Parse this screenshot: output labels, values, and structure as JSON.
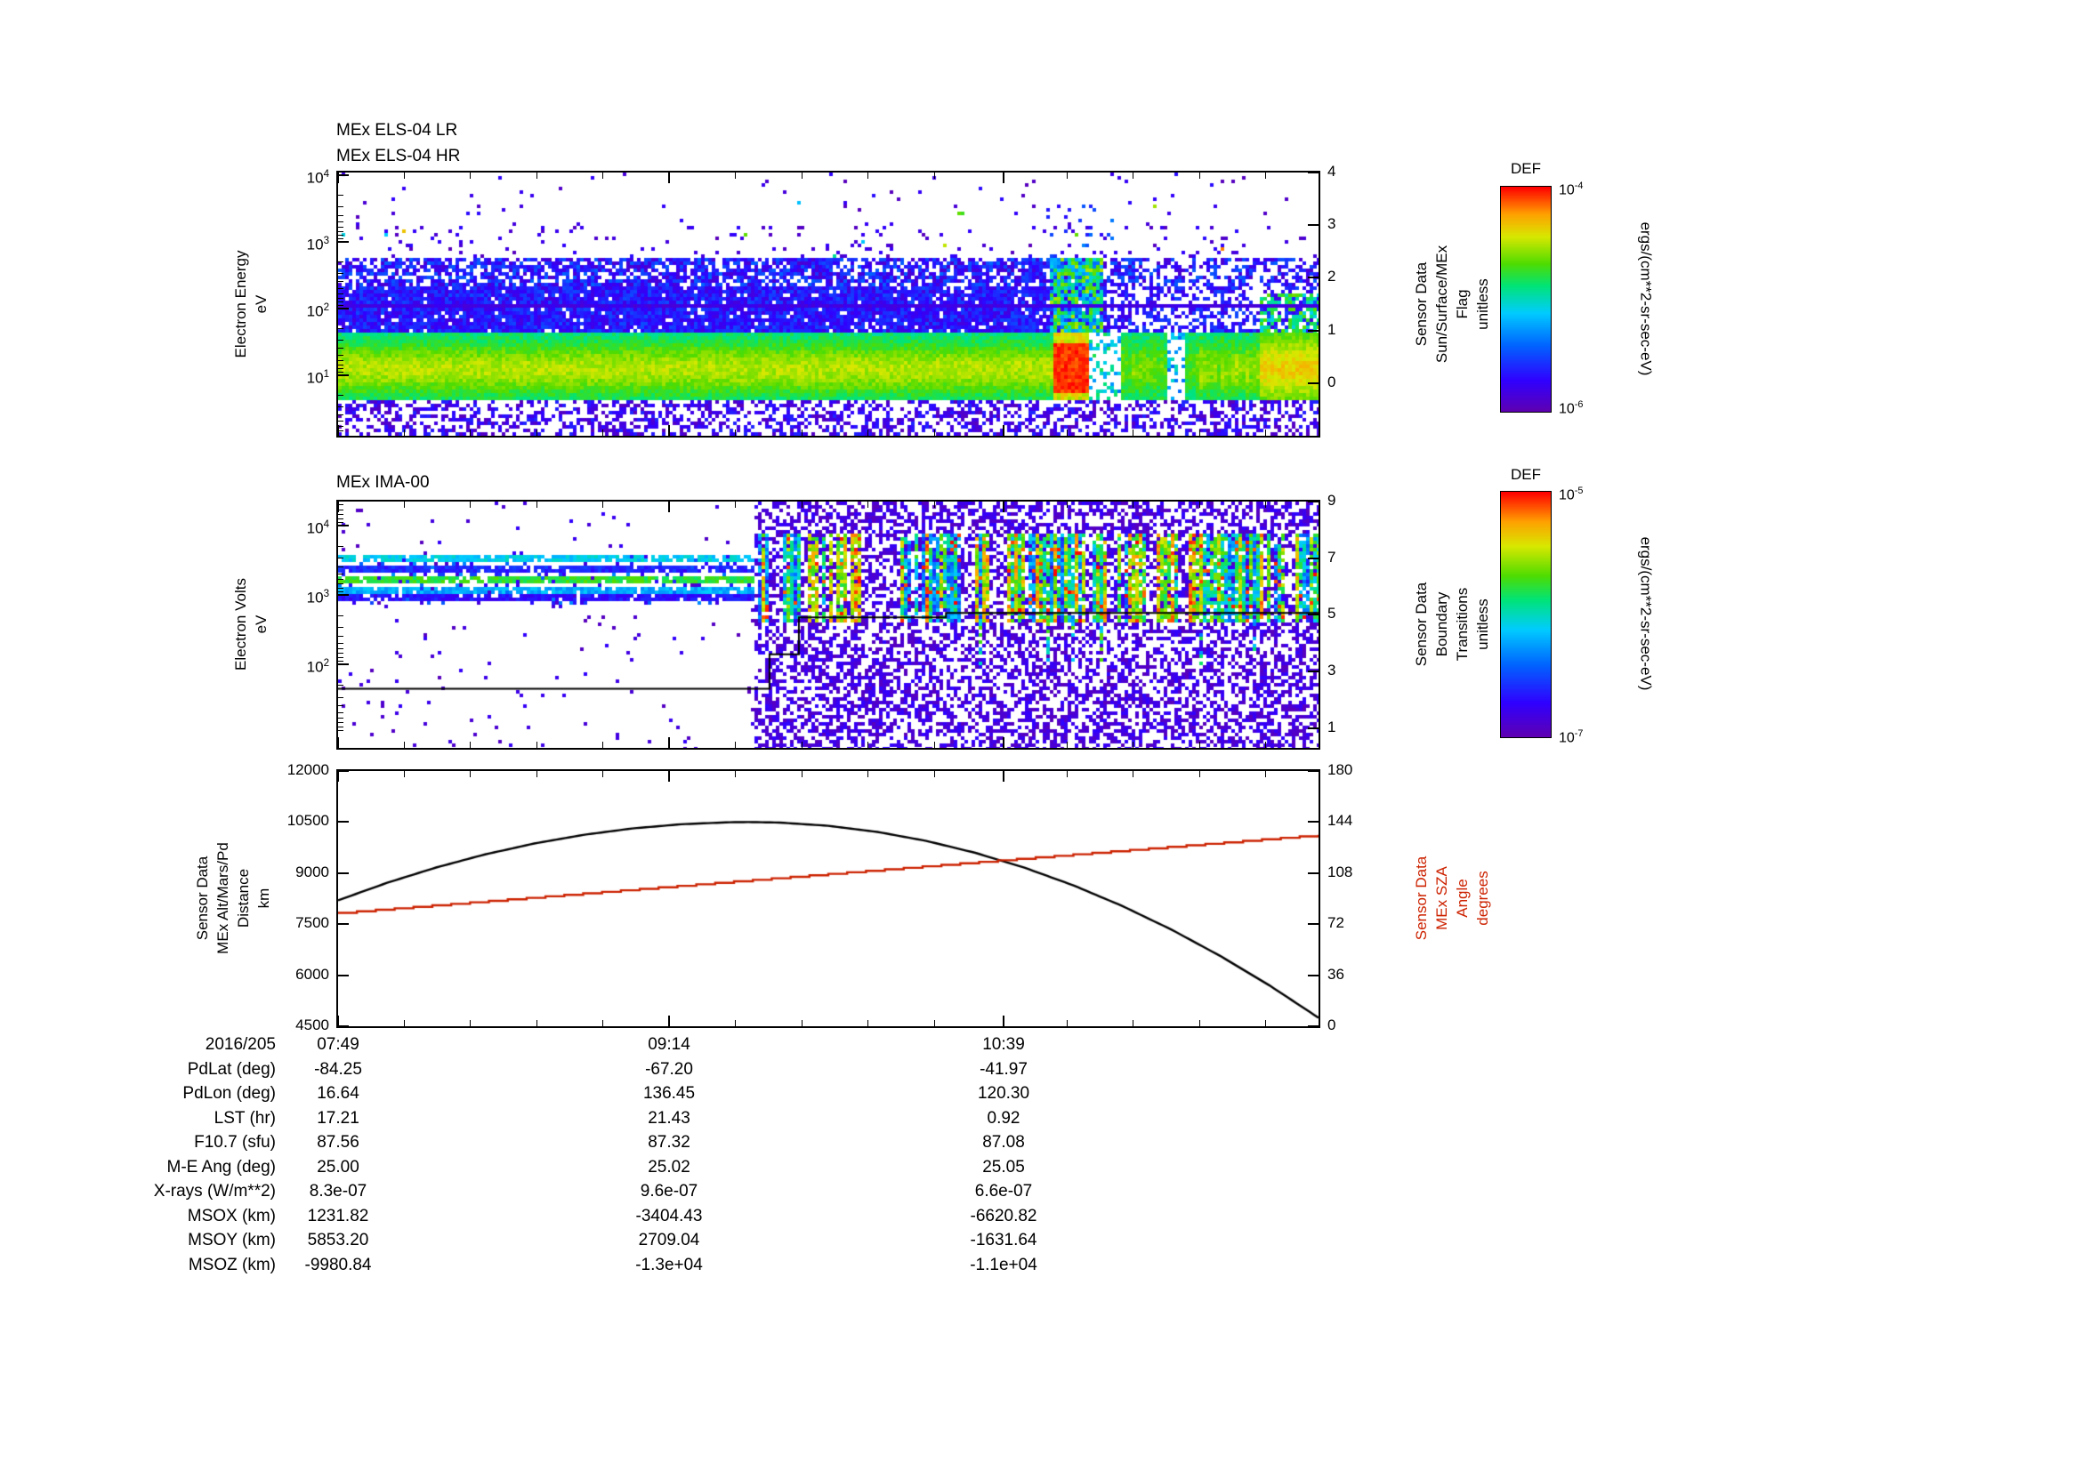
{
  "log_base": "10",
  "colors": {
    "axis": "#000000",
    "alt_line": "#000000",
    "sza_line": "#cc2200",
    "background": "#ffffff"
  },
  "panels": {
    "els": {
      "title_line1": "MEx ELS-04 LR",
      "title_line2": "MEx ELS-04 HR",
      "ylabel_line1": "Electron Energy",
      "ylabel_line2": "eV",
      "yticks": [
        {
          "exp": "4",
          "f": 0.01
        },
        {
          "exp": "3",
          "f": 0.263
        },
        {
          "exp": "2",
          "f": 0.516
        },
        {
          "exp": "1",
          "f": 0.769
        }
      ],
      "log_minor": {
        "f0": 0.01,
        "e0": 4,
        "df": 0.253
      },
      "right_label_lines": [
        "Sensor Data",
        "Sun/Surface/MEx",
        "Flag",
        "unitless"
      ],
      "right_ticks": [
        {
          "label": "4",
          "f": 0.0
        },
        {
          "label": "3",
          "f": 0.2
        },
        {
          "label": "2",
          "f": 0.4
        },
        {
          "label": "1",
          "f": 0.6
        },
        {
          "label": "0",
          "f": 0.8
        }
      ]
    },
    "ima": {
      "title_line1": "MEx IMA-00",
      "ylabel_line1": "Electron Volts",
      "ylabel_line2": "eV",
      "yticks": [
        {
          "exp": "4",
          "f": 0.096
        },
        {
          "exp": "3",
          "f": 0.378
        },
        {
          "exp": "2",
          "f": 0.66
        }
      ],
      "log_minor": {
        "f0": 0.096,
        "e0": 4,
        "df": 0.282
      },
      "right_label_lines": [
        "Sensor Data",
        "Boundary",
        "Transitions",
        "unitless"
      ],
      "right_ticks": [
        {
          "label": "9",
          "f": 0.0
        },
        {
          "label": "7",
          "f": 0.23
        },
        {
          "label": "5",
          "f": 0.46
        },
        {
          "label": "3",
          "f": 0.69
        },
        {
          "label": "1",
          "f": 0.92
        }
      ]
    },
    "orbit": {
      "ylabel_lines": [
        "Sensor Data",
        "MEx Alt/Mars/Pd",
        "Distance",
        "km"
      ],
      "yticks": [
        {
          "label": "12000",
          "f": 0.0
        },
        {
          "label": "10500",
          "f": 0.2
        },
        {
          "label": "9000",
          "f": 0.4
        },
        {
          "label": "7500",
          "f": 0.6
        },
        {
          "label": "6000",
          "f": 0.8
        },
        {
          "label": "4500",
          "f": 1.0
        }
      ],
      "right_label_lines": [
        "Sensor Data",
        "MEx SZA",
        "Angle",
        "degrees"
      ],
      "right_ticks": [
        {
          "label": "180",
          "f": 0.0
        },
        {
          "label": "144",
          "f": 0.2
        },
        {
          "label": "108",
          "f": 0.4
        },
        {
          "label": "72",
          "f": 0.6
        },
        {
          "label": "36",
          "f": 0.8
        },
        {
          "label": "0",
          "f": 1.0
        }
      ]
    }
  },
  "colorbars": {
    "els": {
      "title": "DEF",
      "top_exp": "-4",
      "bottom_exp": "-6",
      "units": "ergs/(cm**2-sr-sec-eV)"
    },
    "ima": {
      "title": "DEF",
      "top_exp": "-5",
      "bottom_exp": "-7",
      "units": "ergs/(cm**2-sr-sec-eV)"
    }
  },
  "xaxis": {
    "major_ticks": [
      {
        "label": "07:49",
        "f": 0.0
      },
      {
        "label": "09:14",
        "f": 0.338
      },
      {
        "label": "10:39",
        "f": 0.679
      }
    ],
    "minor_step": 0.0676
  },
  "table": {
    "row_labels": [
      "2016/205",
      "PdLat (deg)",
      "PdLon (deg)",
      "LST (hr)",
      "F10.7 (sfu)",
      "M-E Ang (deg)",
      "X-rays (W/m**2)",
      "MSOX (km)",
      "MSOY (km)",
      "MSOZ (km)"
    ],
    "rows": [
      [
        "07:49",
        "09:14",
        "10:39"
      ],
      [
        "-84.25",
        "-67.20",
        "-41.97"
      ],
      [
        "16.64",
        "136.45",
        "120.30"
      ],
      [
        "17.21",
        "21.43",
        "0.92"
      ],
      [
        "87.56",
        "87.32",
        "87.08"
      ],
      [
        "25.00",
        "25.02",
        "25.05"
      ],
      [
        "8.3e-07",
        "9.6e-07",
        "6.6e-07"
      ],
      [
        "1231.82",
        "-3404.43",
        "-6620.82"
      ],
      [
        "5853.20",
        "2709.04",
        "-1631.64"
      ],
      [
        "-9980.84",
        "-1.3e+04",
        "-1.1e+04"
      ]
    ]
  },
  "chart_data": [
    {
      "id": "els_spectrogram",
      "type": "heatmap",
      "title": "MEx ELS-04 LR / MEx ELS-04 HR",
      "x_date": "2016/205",
      "x_tick_labels": [
        "07:49",
        "09:14",
        "10:39"
      ],
      "y_axis": {
        "label": "Electron Energy eV",
        "scale": "log",
        "ticks": [
          10,
          100,
          1000,
          10000
        ]
      },
      "z_axis": {
        "label": "DEF ergs/(cm**2-sr-sec-eV)",
        "scale": "log",
        "min": 1e-06,
        "max": 0.0001
      },
      "right_axis": {
        "label": "Sensor Data Sun/Surface/MEx Flag unitless",
        "ticks": [
          0,
          1,
          2,
          3,
          4
        ]
      },
      "features": [
        "continuous intense green flux band ~5-40 eV across whole interval",
        "dense blue-purple band ~50-500 eV",
        "sparse purple speckle above ~1 keV and below ~4 eV",
        "red high-flux enhancement ~3/4 through interval at ~10 eV with vertical disturbance up to ~1 keV",
        "patchy yellow-green low-energy flux after the enhancement"
      ]
    },
    {
      "id": "ima_spectrogram",
      "type": "heatmap",
      "title": "MEx IMA-00",
      "x_date": "2016/205",
      "x_tick_labels": [
        "07:49",
        "09:14",
        "10:39"
      ],
      "y_axis": {
        "label": "Electron Volts eV",
        "scale": "log",
        "ticks": [
          100,
          1000,
          10000
        ]
      },
      "z_axis": {
        "label": "DEF ergs/(cm**2-sr-sec-eV)",
        "scale": "log",
        "min": 1e-07,
        "max": 1e-05
      },
      "right_axis": {
        "label": "Sensor Data Boundary Transitions unitless",
        "ticks": [
          1,
          3,
          5,
          7,
          9
        ]
      },
      "features": [
        "horizontal banded blue/cyan/green flux ~1-4 keV during first part",
        "mostly empty lower-left region with sparse purple dots",
        "dense purple speckle with colorful vertical striping in later part",
        "black boundary-transition step line referenced to right axis"
      ]
    },
    {
      "id": "orbit_lines",
      "type": "line",
      "series": [
        {
          "name": "MEx Alt/Mars/Pd Distance",
          "units": "km",
          "color": "#000000",
          "style": "solid",
          "axis": "left",
          "axis_range": [
            4500,
            12000
          ],
          "x": [
            0,
            0.05,
            0.1,
            0.15,
            0.2,
            0.25,
            0.3,
            0.35,
            0.4,
            0.42,
            0.45,
            0.5,
            0.55,
            0.6,
            0.65,
            0.7,
            0.75,
            0.8,
            0.85,
            0.9,
            0.95,
            1
          ],
          "values": [
            8200,
            8715,
            9165,
            9550,
            9869,
            10123,
            10312,
            10436,
            10495,
            10500,
            10485,
            10391,
            10211,
            9946,
            9596,
            9160,
            8639,
            8032,
            7339,
            6562,
            5699,
            4750
          ]
        },
        {
          "name": "MEx SZA Angle",
          "units": "degrees",
          "color": "#cc2200",
          "style": "stepped",
          "axis": "right",
          "axis_range": [
            0,
            180
          ],
          "x": [
            0,
            0.1,
            0.2,
            0.3,
            0.4,
            0.5,
            0.6,
            0.7,
            0.8,
            0.9,
            1
          ],
          "values": [
            80,
            85.5,
            91,
            96.5,
            102,
            107.5,
            113,
            118.5,
            124,
            129.5,
            135
          ]
        }
      ]
    }
  ]
}
